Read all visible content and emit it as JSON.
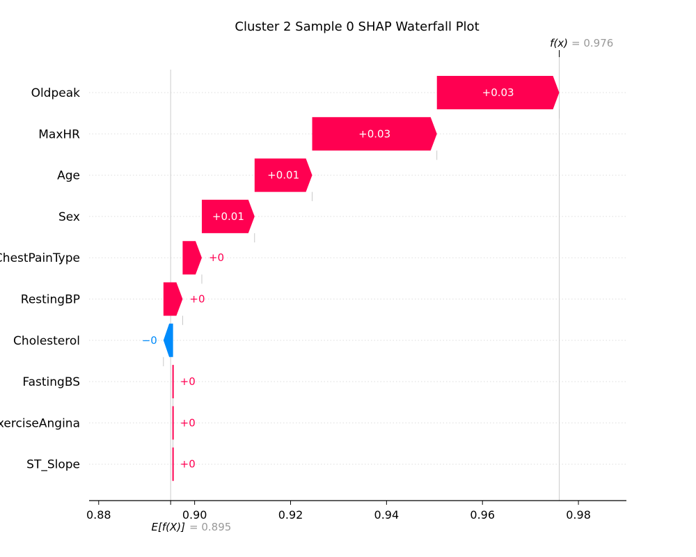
{
  "colors": {
    "positive": "#ff0051",
    "negative": "#008bfb",
    "muted": "#999999",
    "text": "#000000"
  },
  "chart_data": {
    "type": "waterfall",
    "title": "Cluster 2 Sample 0 SHAP Waterfall Plot",
    "xlim": [
      0.878,
      0.99
    ],
    "xticks": [
      0.88,
      0.9,
      0.92,
      0.94,
      0.96,
      0.98
    ],
    "xtick_labels": [
      "0.88",
      "0.90",
      "0.92",
      "0.94",
      "0.96",
      "0.98"
    ],
    "base_value": 0.895,
    "base_label_prefix": "E[f(X)]",
    "base_label_value": "= 0.895",
    "output_value": 0.976,
    "output_label_prefix": "f(x)",
    "output_label_value": "= 0.976",
    "features": [
      {
        "name": "Oldpeak",
        "start": 0.9505,
        "end": 0.976,
        "label": "+0.03"
      },
      {
        "name": "MaxHR",
        "start": 0.9245,
        "end": 0.9505,
        "label": "+0.03"
      },
      {
        "name": "Age",
        "start": 0.9125,
        "end": 0.9245,
        "label": "+0.01"
      },
      {
        "name": "Sex",
        "start": 0.9015,
        "end": 0.9125,
        "label": "+0.01"
      },
      {
        "name": "ChestPainType",
        "start": 0.8975,
        "end": 0.9015,
        "label": "+0"
      },
      {
        "name": "RestingBP",
        "start": 0.8935,
        "end": 0.8975,
        "label": "+0"
      },
      {
        "name": "Cholesterol",
        "start": 0.8955,
        "end": 0.8935,
        "label": "−0"
      },
      {
        "name": "FastingBS",
        "start": 0.8955,
        "end": 0.8955,
        "label": "+0"
      },
      {
        "name": "ExerciseAngina",
        "start": 0.8955,
        "end": 0.8955,
        "label": "+0"
      },
      {
        "name": "ST_Slope",
        "start": 0.8955,
        "end": 0.8955,
        "label": "+0"
      }
    ]
  }
}
